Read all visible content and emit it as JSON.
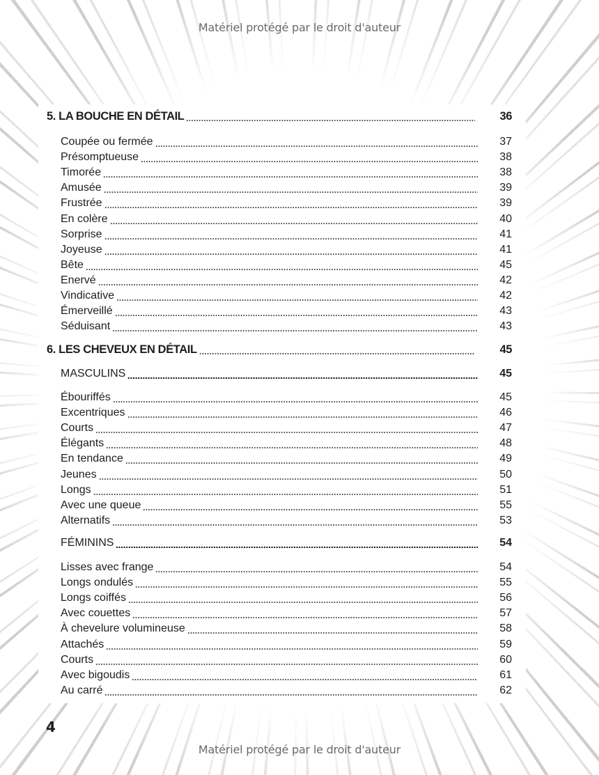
{
  "watermark": "Matériel protégé par le droit d'auteur",
  "page_number": "4",
  "toc": [
    {
      "type": "section",
      "label": "5. LA BOUCHE EN DÉTAIL",
      "page": "36"
    },
    {
      "type": "item",
      "label": "Coupée ou fermée",
      "page": "37"
    },
    {
      "type": "item",
      "label": "Présomptueuse",
      "page": "38"
    },
    {
      "type": "item",
      "label": "Timorée",
      "page": "38"
    },
    {
      "type": "item",
      "label": "Amusée",
      "page": "39"
    },
    {
      "type": "item",
      "label": "Frustrée",
      "page": "39"
    },
    {
      "type": "item",
      "label": "En colère",
      "page": "40"
    },
    {
      "type": "item",
      "label": "Sorprise",
      "page": "41"
    },
    {
      "type": "item",
      "label": "Joyeuse",
      "page": "41"
    },
    {
      "type": "item",
      "label": "Bête",
      "page": "45"
    },
    {
      "type": "item",
      "label": "Enervé",
      "page": "42"
    },
    {
      "type": "item",
      "label": "Vindicative",
      "page": "42"
    },
    {
      "type": "item",
      "label": "Émerveillé",
      "page": "43"
    },
    {
      "type": "item",
      "label": "Séduisant",
      "page": "43"
    },
    {
      "type": "section",
      "label": "6. LES CHEVEUX EN DÉTAIL",
      "page": "45"
    },
    {
      "type": "sub",
      "label": "MASCULINS",
      "page": "45"
    },
    {
      "type": "item",
      "label": "Ébouriffés",
      "page": "45"
    },
    {
      "type": "item",
      "label": "Excentriques",
      "page": "46"
    },
    {
      "type": "item",
      "label": "Courts",
      "page": "47"
    },
    {
      "type": "item",
      "label": "Élégants",
      "page": "48"
    },
    {
      "type": "item",
      "label": "En tendance",
      "page": "49"
    },
    {
      "type": "item",
      "label": "Jeunes",
      "page": "50"
    },
    {
      "type": "item",
      "label": "Longs",
      "page": "51"
    },
    {
      "type": "item",
      "label": "Avec une queue",
      "page": "55"
    },
    {
      "type": "item",
      "label": "Alternatifs",
      "page": "53"
    },
    {
      "type": "sub",
      "label": "FÉMININS",
      "page": "54"
    },
    {
      "type": "item",
      "label": "Lisses avec frange",
      "page": "54"
    },
    {
      "type": "item",
      "label": "Longs ondulés",
      "page": "55"
    },
    {
      "type": "item",
      "label": "Longs coiffés",
      "page": "56"
    },
    {
      "type": "item",
      "label": "Avec couettes",
      "page": "57"
    },
    {
      "type": "item",
      "label": "À chevelure volumineuse",
      "page": "58"
    },
    {
      "type": "item",
      "label": "Attachés",
      "page": "59"
    },
    {
      "type": "item",
      "label": "Courts",
      "page": "60"
    },
    {
      "type": "item",
      "label": "Avec bigoudis",
      "page": "61"
    },
    {
      "type": "item",
      "label": "Au carré",
      "page": "62"
    }
  ]
}
